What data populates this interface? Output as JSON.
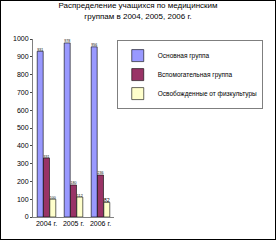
{
  "chart_data": {
    "type": "bar",
    "title": "Распределение учащихся по медицинским группам в 2004, 2005, 2006 г.",
    "categories": [
      "2004 г.",
      "2005 г.",
      "2006 г."
    ],
    "series": [
      {
        "name": "Основная группа",
        "color": "#9999ff",
        "values": [
          931,
          978,
          956
        ]
      },
      {
        "name": "Вспомогательная группа",
        "color": "#993366",
        "values": [
          331,
          180,
          236
        ]
      },
      {
        "name": "Освобожденные от физкультуры",
        "color": "#ffffcc",
        "values": [
          100,
          112,
          82
        ]
      }
    ],
    "ylim": [
      0,
      1000
    ],
    "yticks": [
      0,
      100,
      200,
      300,
      400,
      500,
      600,
      700,
      800,
      900,
      1000
    ],
    "grid": false,
    "legend": "right",
    "data_labels": true
  }
}
